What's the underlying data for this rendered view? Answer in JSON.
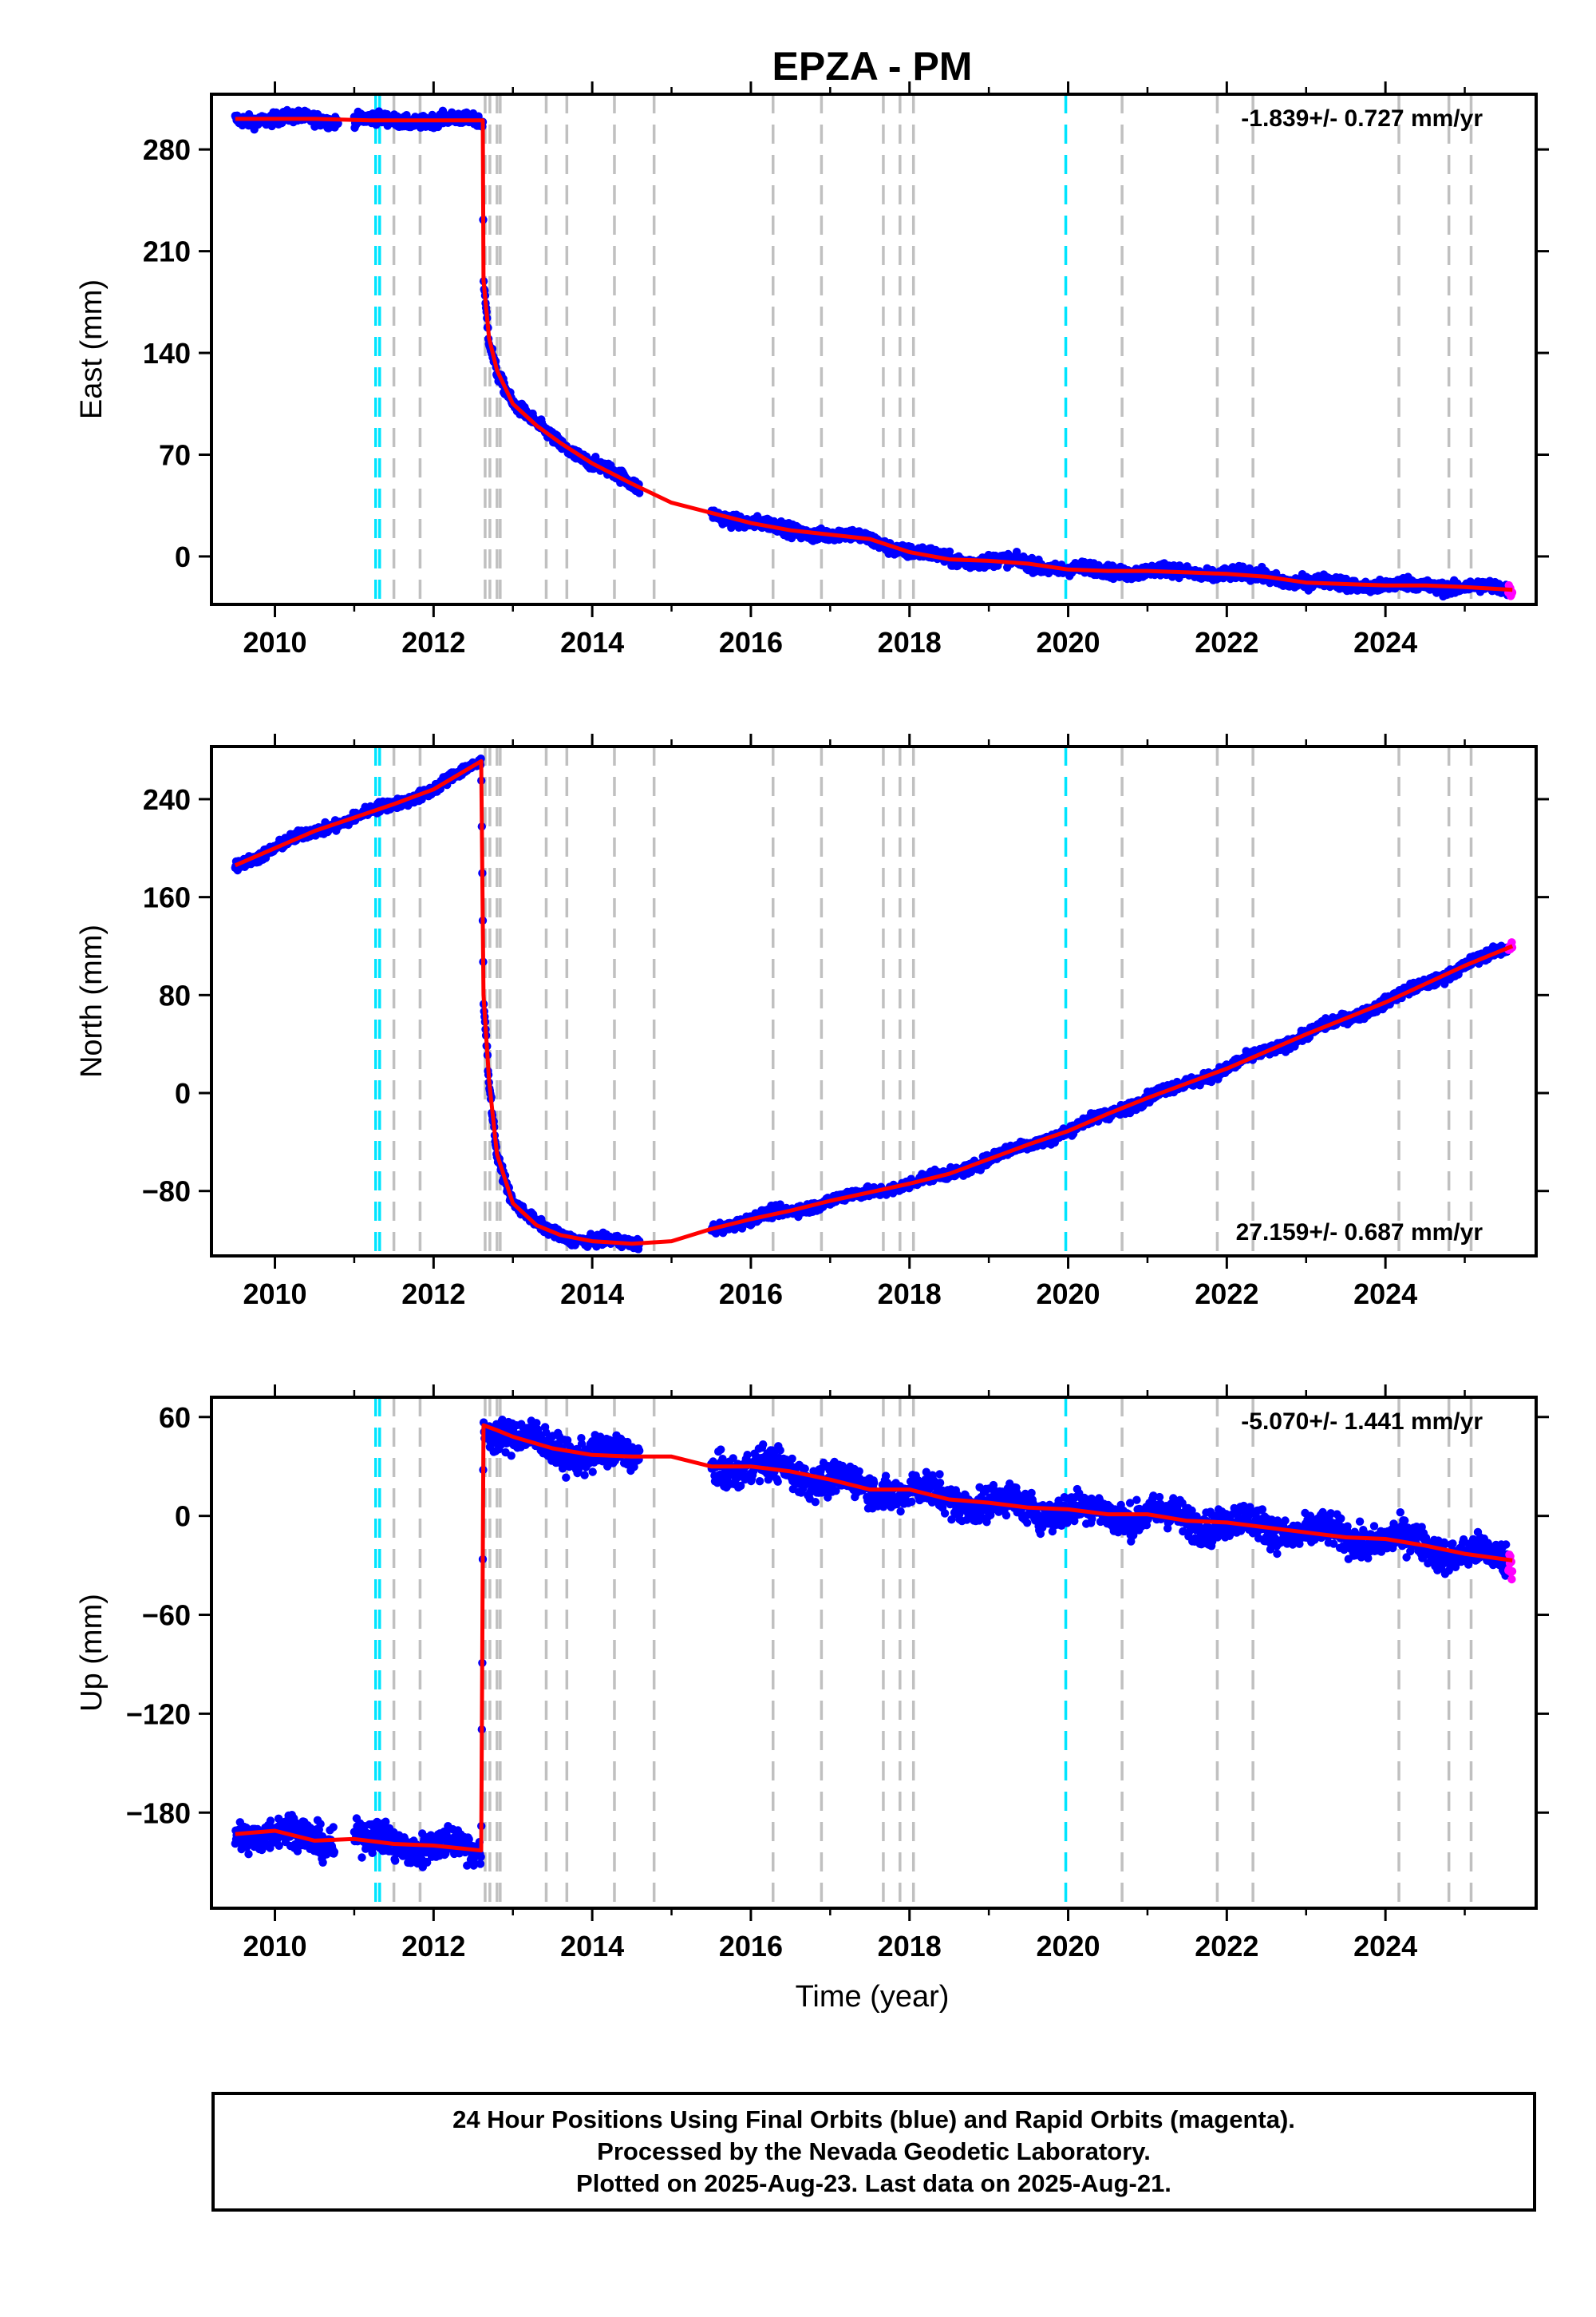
{
  "figure": {
    "title": "EPZA - PM",
    "xlabel": "Time (year)"
  },
  "colors": {
    "final_orbits": "#0000ff",
    "rapid_orbits": "#ff00ff",
    "model": "#ff0000",
    "antenna_change": "#00e5ff",
    "earthquake": "#c0c0c0"
  },
  "legend": {
    "line1": "24 Hour Positions Using Final Orbits (blue) and Rapid Orbits (magenta).",
    "line2": "Processed by the Nevada Geodetic Laboratory.",
    "line3": "Plotted on 2025-Aug-23. Last data on 2025-Aug-21."
  },
  "chart_data": [
    {
      "type": "scatter",
      "name": "east",
      "ylabel": "East (mm)",
      "rate": "-1.839+/- 0.727 mm/yr",
      "rate_position": "top-right",
      "xlim": [
        2009.2,
        2025.9
      ],
      "ylim": [
        -33,
        318
      ],
      "xticks": [
        2010,
        2012,
        2014,
        2016,
        2018,
        2020,
        2022,
        2024
      ],
      "yticks": [
        0,
        70,
        140,
        210,
        280
      ],
      "model_series": {
        "name": "model",
        "x": [
          2009.5,
          2010.5,
          2011.2,
          2012.0,
          2012.62,
          2012.63,
          2012.7,
          2012.8,
          2013.0,
          2013.3,
          2013.6,
          2014.0,
          2014.5,
          2015.0,
          2015.5,
          2016.0,
          2016.5,
          2017.0,
          2017.5,
          2018.0,
          2018.5,
          2019.0,
          2019.5,
          2020.0,
          2020.5,
          2021.0,
          2021.5,
          2022.0,
          2022.5,
          2023.0,
          2023.5,
          2024.0,
          2024.5,
          2025.0,
          2025.6
        ],
        "y": [
          301,
          301,
          300,
          300,
          300,
          190,
          150,
          128,
          105,
          90,
          78,
          64,
          50,
          37,
          30,
          23,
          18,
          15,
          12,
          3,
          -2,
          -3,
          -5,
          -9,
          -10,
          -10,
          -11,
          -12,
          -14,
          -18,
          -19,
          -20,
          -20,
          -21,
          -23
        ]
      },
      "gaps": [
        [
          2010.8,
          2011.0
        ],
        [
          2014.6,
          2015.5
        ]
      ],
      "antenna_changes": [
        2011.27,
        2011.32,
        2019.97
      ],
      "earthquakes": [
        2011.5,
        2011.83,
        2012.65,
        2012.71,
        2012.8,
        2012.84,
        2013.42,
        2013.68,
        2014.28,
        2014.78,
        2016.28,
        2016.89,
        2017.67,
        2017.88,
        2018.05,
        2020.68,
        2021.88,
        2022.33,
        2024.17,
        2024.8,
        2025.08
      ],
      "scatter_noise": 3,
      "rapid_start": 2025.55
    },
    {
      "type": "scatter",
      "name": "north",
      "ylabel": "North (mm)",
      "rate": "27.159+/- 0.687 mm/yr",
      "rate_position": "bottom-right",
      "xlim": [
        2009.2,
        2025.9
      ],
      "ylim": [
        -133,
        283
      ],
      "xticks": [
        2010,
        2012,
        2014,
        2016,
        2018,
        2020,
        2022,
        2024
      ],
      "yticks": [
        -80,
        0,
        80,
        160,
        240
      ],
      "model_series": {
        "name": "model",
        "x": [
          2009.5,
          2010.0,
          2010.5,
          2011.0,
          2011.5,
          2012.0,
          2012.6,
          2012.63,
          2012.7,
          2012.8,
          2013.0,
          2013.3,
          2013.6,
          2014.0,
          2014.5,
          2015.0,
          2015.5,
          2016.0,
          2016.5,
          2017.0,
          2017.5,
          2018.0,
          2018.5,
          2019.0,
          2019.5,
          2020.0,
          2020.5,
          2021.0,
          2021.5,
          2022.0,
          2022.5,
          2023.0,
          2023.5,
          2024.0,
          2024.5,
          2025.0,
          2025.6
        ],
        "y": [
          186,
          200,
          214,
          225,
          236,
          248,
          271,
          80,
          10,
          -50,
          -90,
          -108,
          -116,
          -121,
          -123,
          -121,
          -111,
          -103,
          -96,
          -88,
          -81,
          -74,
          -66,
          -54,
          -42,
          -31,
          -17,
          -4,
          8,
          20,
          34,
          48,
          61,
          74,
          89,
          104,
          120
        ]
      },
      "gaps": [
        [
          2014.6,
          2015.5
        ]
      ],
      "antenna_changes": [
        2011.27,
        2011.32,
        2019.97
      ],
      "earthquakes": [
        2011.5,
        2011.83,
        2012.65,
        2012.71,
        2012.8,
        2012.84,
        2013.42,
        2013.68,
        2014.28,
        2014.78,
        2016.28,
        2016.89,
        2017.67,
        2017.88,
        2018.05,
        2020.68,
        2021.88,
        2022.33,
        2024.17,
        2024.8,
        2025.08
      ],
      "scatter_noise": 3,
      "rapid_start": 2025.55
    },
    {
      "type": "scatter",
      "name": "up",
      "ylabel": "Up (mm)",
      "rate": "-5.070+/- 1.441 mm/yr",
      "rate_position": "top-right",
      "xlim": [
        2009.2,
        2025.9
      ],
      "ylim": [
        -238,
        72
      ],
      "xticks": [
        2010,
        2012,
        2014,
        2016,
        2018,
        2020,
        2022,
        2024
      ],
      "yticks": [
        -180,
        -120,
        -60,
        0,
        60
      ],
      "model_series": {
        "name": "model",
        "x": [
          2009.5,
          2010.0,
          2010.5,
          2011.0,
          2011.5,
          2012.0,
          2012.6,
          2012.63,
          2012.8,
          2013.0,
          2013.5,
          2014.0,
          2014.5,
          2015.0,
          2015.5,
          2016.0,
          2016.5,
          2017.0,
          2017.5,
          2018.0,
          2018.5,
          2019.0,
          2019.5,
          2020.0,
          2020.5,
          2021.0,
          2021.5,
          2022.0,
          2022.5,
          2023.0,
          2023.5,
          2024.0,
          2024.5,
          2025.0,
          2025.6
        ],
        "y": [
          -193,
          -191,
          -197,
          -196,
          -199,
          -200,
          -203,
          55,
          52,
          48,
          41,
          37,
          36,
          36,
          30,
          30,
          27,
          22,
          16,
          16,
          10,
          8,
          5,
          4,
          1,
          1,
          -3,
          -4,
          -7,
          -10,
          -13,
          -14,
          -18,
          -23,
          -27
        ]
      },
      "gaps": [
        [
          2010.75,
          2011.0
        ],
        [
          2014.6,
          2015.5
        ]
      ],
      "antenna_changes": [
        2011.27,
        2011.32,
        2019.97
      ],
      "earthquakes": [
        2011.5,
        2011.83,
        2012.65,
        2012.71,
        2012.8,
        2012.84,
        2013.42,
        2013.68,
        2014.28,
        2014.78,
        2016.28,
        2016.89,
        2017.67,
        2017.88,
        2018.05,
        2020.68,
        2021.88,
        2022.33,
        2024.17,
        2024.8,
        2025.08
      ],
      "scatter_noise": 7,
      "rapid_start": 2025.55
    }
  ]
}
